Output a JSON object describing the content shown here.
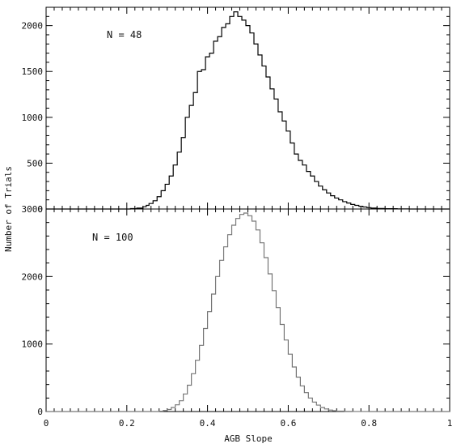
{
  "chart_data": [
    {
      "type": "bar",
      "panel": "top",
      "annotation": "N = 48",
      "xlim": [
        0,
        1
      ],
      "ylim": [
        0,
        2200
      ],
      "yticks": [
        0,
        500,
        1000,
        1500,
        2000
      ],
      "xticks": [],
      "stroke": "#000000",
      "bins": [
        [
          0.0,
          0
        ],
        [
          0.192,
          0
        ],
        [
          0.209,
          5
        ],
        [
          0.225,
          10
        ],
        [
          0.24,
          25
        ],
        [
          0.248,
          40
        ],
        [
          0.255,
          60
        ],
        [
          0.265,
          90
        ],
        [
          0.275,
          135
        ],
        [
          0.285,
          200
        ],
        [
          0.295,
          270
        ],
        [
          0.305,
          360
        ],
        [
          0.315,
          480
        ],
        [
          0.325,
          620
        ],
        [
          0.335,
          780
        ],
        [
          0.345,
          1000
        ],
        [
          0.355,
          1130
        ],
        [
          0.365,
          1270
        ],
        [
          0.375,
          1500
        ],
        [
          0.385,
          1520
        ],
        [
          0.395,
          1660
        ],
        [
          0.405,
          1700
        ],
        [
          0.415,
          1830
        ],
        [
          0.425,
          1880
        ],
        [
          0.435,
          1980
        ],
        [
          0.445,
          2020
        ],
        [
          0.455,
          2100
        ],
        [
          0.465,
          2150
        ],
        [
          0.475,
          2100
        ],
        [
          0.485,
          2060
        ],
        [
          0.495,
          2000
        ],
        [
          0.505,
          1920
        ],
        [
          0.515,
          1800
        ],
        [
          0.525,
          1680
        ],
        [
          0.535,
          1560
        ],
        [
          0.545,
          1440
        ],
        [
          0.555,
          1310
        ],
        [
          0.565,
          1200
        ],
        [
          0.575,
          1060
        ],
        [
          0.585,
          960
        ],
        [
          0.595,
          850
        ],
        [
          0.605,
          720
        ],
        [
          0.615,
          600
        ],
        [
          0.625,
          530
        ],
        [
          0.635,
          480
        ],
        [
          0.645,
          410
        ],
        [
          0.655,
          360
        ],
        [
          0.665,
          300
        ],
        [
          0.675,
          250
        ],
        [
          0.685,
          210
        ],
        [
          0.695,
          175
        ],
        [
          0.705,
          145
        ],
        [
          0.715,
          120
        ],
        [
          0.725,
          100
        ],
        [
          0.735,
          80
        ],
        [
          0.745,
          65
        ],
        [
          0.755,
          50
        ],
        [
          0.765,
          40
        ],
        [
          0.775,
          30
        ],
        [
          0.785,
          22
        ],
        [
          0.795,
          15
        ],
        [
          0.805,
          10
        ],
        [
          0.82,
          6
        ],
        [
          0.84,
          3
        ],
        [
          0.87,
          1
        ],
        [
          0.9,
          0
        ]
      ]
    },
    {
      "type": "bar",
      "panel": "bottom",
      "annotation": "N = 100",
      "xlim": [
        0,
        1
      ],
      "ylim": [
        0,
        3000
      ],
      "yticks": [
        0,
        1000,
        2000,
        3000
      ],
      "xticks": [
        0,
        0.2,
        0.4,
        0.6,
        0.8,
        1
      ],
      "xlabel": "AGB Slope",
      "stroke": "#777777",
      "bins": [
        [
          0.0,
          0
        ],
        [
          0.26,
          0
        ],
        [
          0.28,
          5
        ],
        [
          0.29,
          15
        ],
        [
          0.3,
          30
        ],
        [
          0.31,
          60
        ],
        [
          0.32,
          100
        ],
        [
          0.33,
          160
        ],
        [
          0.34,
          260
        ],
        [
          0.35,
          390
        ],
        [
          0.36,
          560
        ],
        [
          0.37,
          760
        ],
        [
          0.38,
          980
        ],
        [
          0.39,
          1230
        ],
        [
          0.4,
          1480
        ],
        [
          0.41,
          1740
        ],
        [
          0.42,
          2000
        ],
        [
          0.43,
          2240
        ],
        [
          0.44,
          2440
        ],
        [
          0.45,
          2620
        ],
        [
          0.46,
          2760
        ],
        [
          0.47,
          2860
        ],
        [
          0.48,
          2920
        ],
        [
          0.49,
          2940
        ],
        [
          0.5,
          2900
        ],
        [
          0.51,
          2820
        ],
        [
          0.52,
          2690
        ],
        [
          0.53,
          2500
        ],
        [
          0.54,
          2280
        ],
        [
          0.55,
          2040
        ],
        [
          0.56,
          1790
        ],
        [
          0.57,
          1540
        ],
        [
          0.58,
          1290
        ],
        [
          0.59,
          1060
        ],
        [
          0.6,
          850
        ],
        [
          0.61,
          660
        ],
        [
          0.62,
          510
        ],
        [
          0.63,
          380
        ],
        [
          0.64,
          280
        ],
        [
          0.65,
          200
        ],
        [
          0.66,
          140
        ],
        [
          0.67,
          95
        ],
        [
          0.68,
          60
        ],
        [
          0.69,
          38
        ],
        [
          0.7,
          22
        ],
        [
          0.71,
          12
        ],
        [
          0.72,
          6
        ],
        [
          0.74,
          2
        ],
        [
          0.76,
          1
        ],
        [
          0.8,
          0
        ]
      ]
    }
  ],
  "shared": {
    "ylabel": "Number of Trials"
  }
}
